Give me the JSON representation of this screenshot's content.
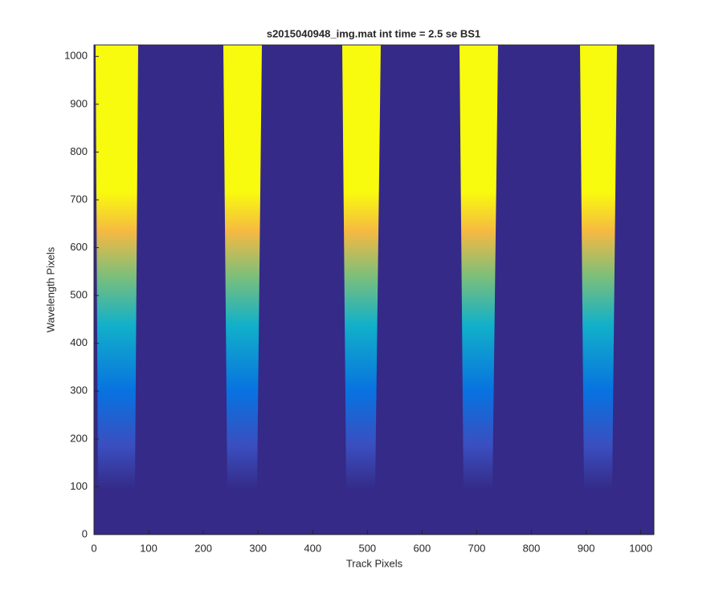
{
  "chart_data": {
    "type": "image",
    "title": "s2015040948_img.mat int time = 2.5 se   BS1",
    "x_label": "Track Pixels",
    "y_label": "Wavelength Pixels",
    "xlim": [
      0,
      1024
    ],
    "ylim": [
      0,
      1024
    ],
    "xticks": [
      0,
      100,
      200,
      300,
      400,
      500,
      600,
      700,
      800,
      900,
      1000
    ],
    "yticks": [
      0,
      100,
      200,
      300,
      400,
      500,
      600,
      700,
      800,
      900,
      1000
    ]
  }
}
